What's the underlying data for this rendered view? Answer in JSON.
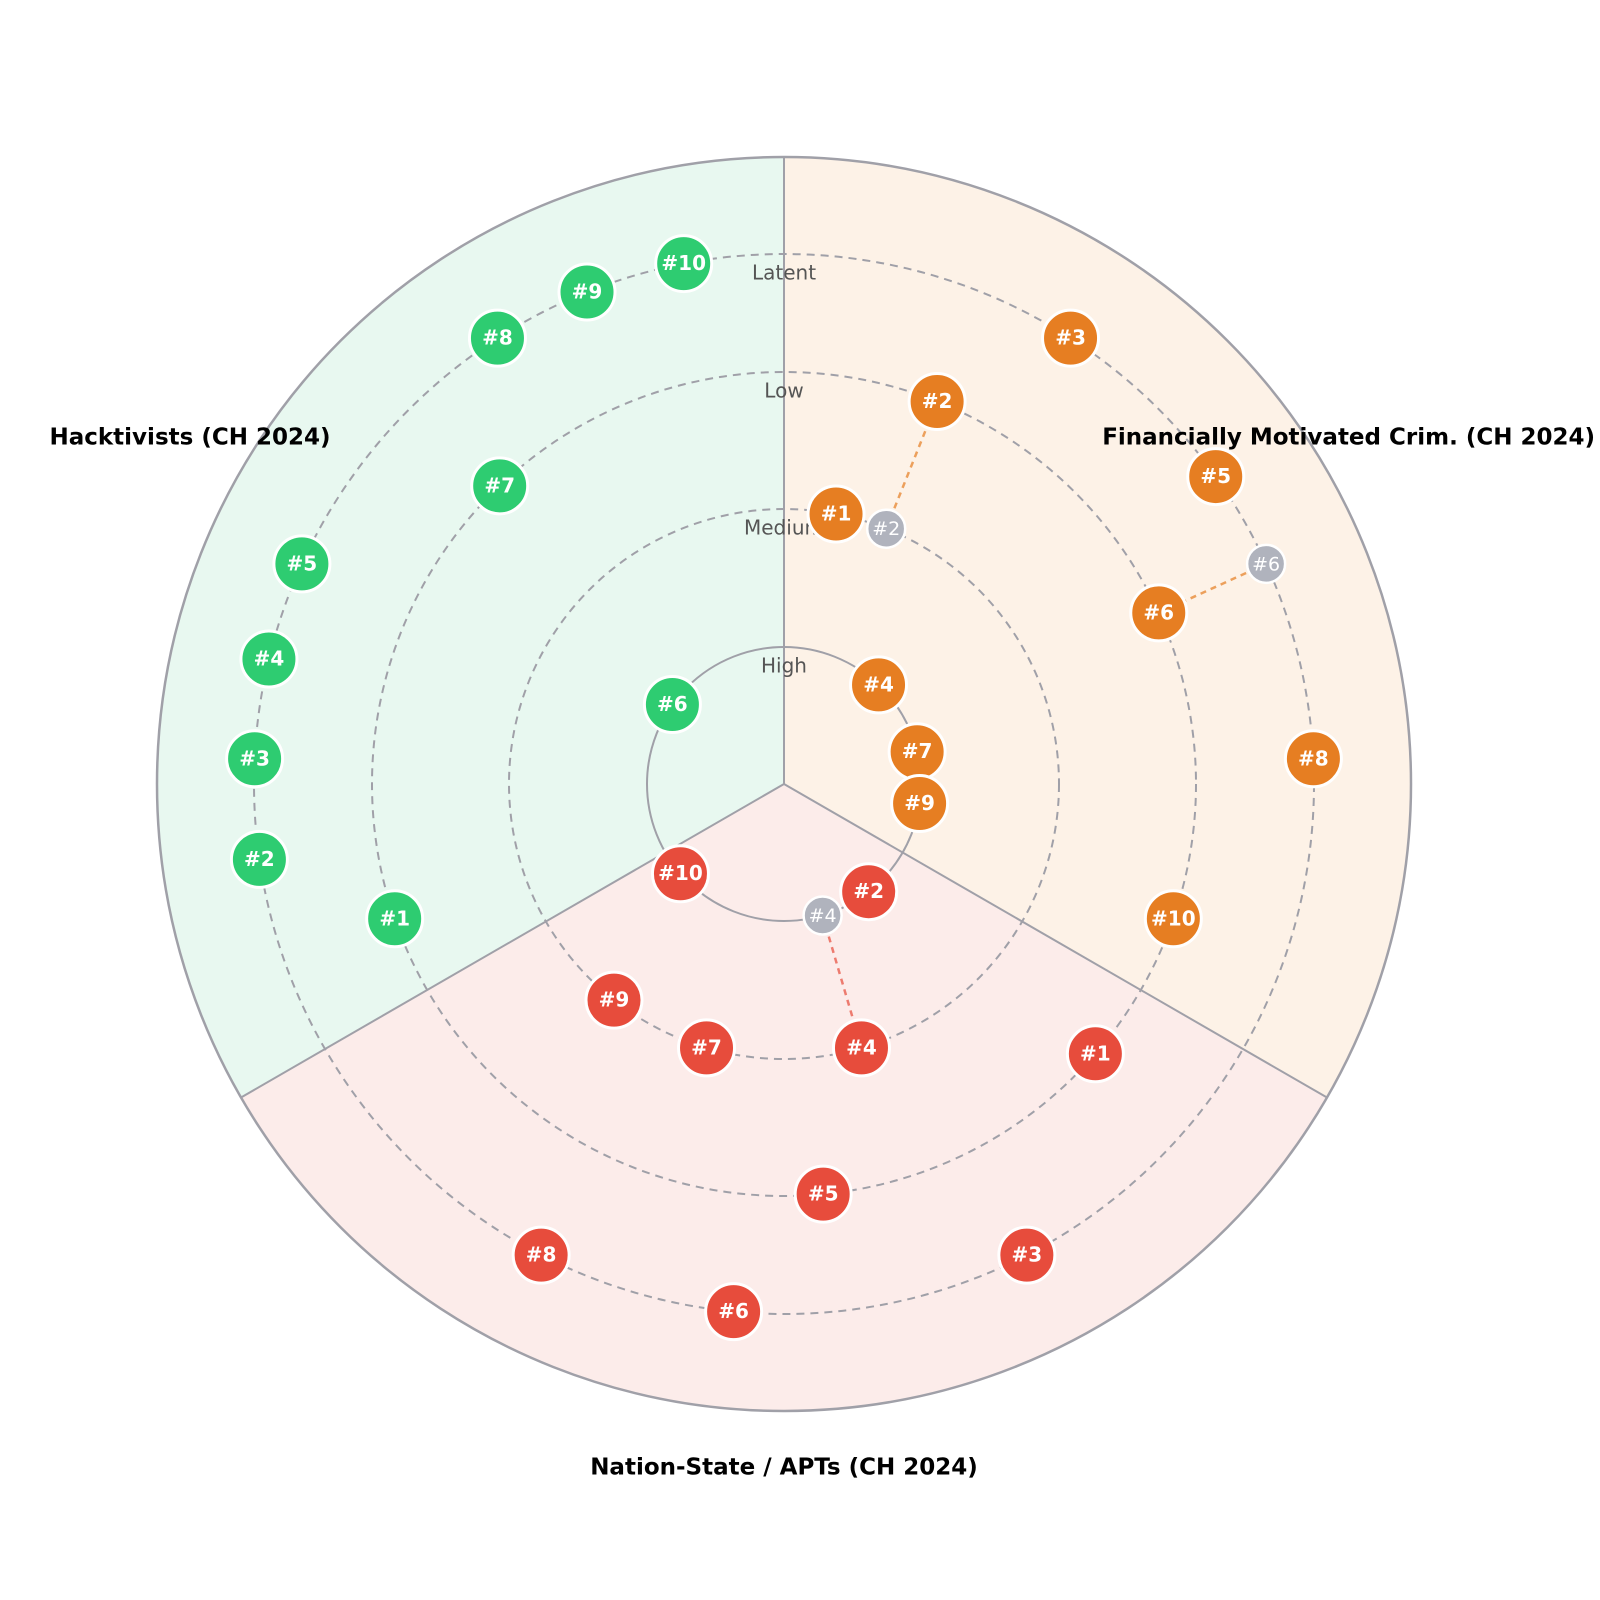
{
  "ring_labels": [
    "High",
    "Medium",
    "Low",
    "Latent"
  ],
  "sectors": [
    {
      "title": "Financially Motivated Crim. (CH 2024)",
      "color": "#e67e22",
      "fill": "#fdf2e7",
      "items": [
        {
          "label": "#1",
          "ring": "Medium"
        },
        {
          "label": "#2",
          "ring": "Low",
          "previous_ring": "Medium"
        },
        {
          "label": "#3",
          "ring": "Latent"
        },
        {
          "label": "#4",
          "ring": "High"
        },
        {
          "label": "#5",
          "ring": "Latent"
        },
        {
          "label": "#6",
          "ring": "Low",
          "previous_ring": "Latent"
        },
        {
          "label": "#7",
          "ring": "High"
        },
        {
          "label": "#8",
          "ring": "Latent"
        },
        {
          "label": "#9",
          "ring": "High"
        },
        {
          "label": "#10",
          "ring": "Low"
        }
      ]
    },
    {
      "title": "Nation-State / APTs (CH 2024)",
      "color": "#e74c3c",
      "fill": "#fcecea",
      "items": [
        {
          "label": "#1",
          "ring": "Low"
        },
        {
          "label": "#2",
          "ring": "High"
        },
        {
          "label": "#3",
          "ring": "Latent"
        },
        {
          "label": "#4",
          "ring": "Medium",
          "previous_ring": "High"
        },
        {
          "label": "#5",
          "ring": "Low"
        },
        {
          "label": "#6",
          "ring": "Latent"
        },
        {
          "label": "#7",
          "ring": "Medium"
        },
        {
          "label": "#8",
          "ring": "Latent"
        },
        {
          "label": "#9",
          "ring": "Medium"
        },
        {
          "label": "#10",
          "ring": "High"
        }
      ]
    },
    {
      "title": "Hacktivists (CH 2024)",
      "color": "#2ecc71",
      "fill": "#e8f8f0",
      "items": [
        {
          "label": "#1",
          "ring": "Low"
        },
        {
          "label": "#2",
          "ring": "Latent"
        },
        {
          "label": "#3",
          "ring": "Latent"
        },
        {
          "label": "#4",
          "ring": "Latent"
        },
        {
          "label": "#5",
          "ring": "Latent"
        },
        {
          "label": "#6",
          "ring": "High"
        },
        {
          "label": "#7",
          "ring": "Low"
        },
        {
          "label": "#8",
          "ring": "Latent"
        },
        {
          "label": "#9",
          "ring": "Latent"
        },
        {
          "label": "#10",
          "ring": "Latent"
        }
      ]
    }
  ]
}
